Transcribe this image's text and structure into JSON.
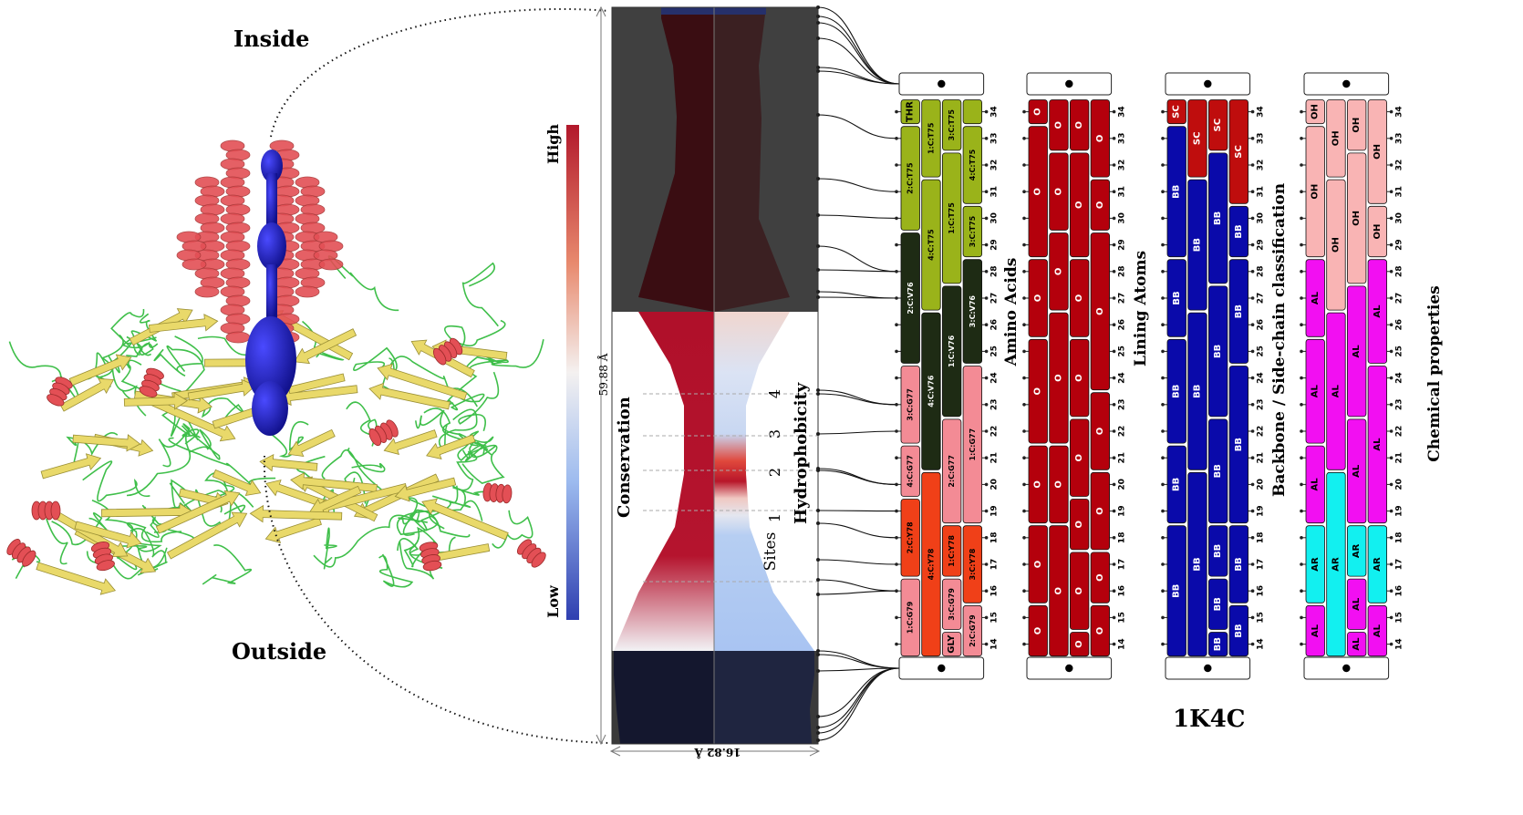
{
  "labels": {
    "inside": "Inside",
    "outside": "Outside",
    "high": "High",
    "low": "Low",
    "height_measure": "59.88 Å",
    "width_measure": "16.82 Å",
    "conservation": "Conservation",
    "hydrophobicity": "Hydrophobicity",
    "sites": "Sites",
    "pdb_id": "1K4C"
  },
  "sites": [
    "1",
    "2",
    "3",
    "4"
  ],
  "panel_titles": [
    "Amino Acids",
    "Lining Atoms",
    "Backbone / Side-chain classification",
    "Chemical properties"
  ],
  "residue_numbers": [
    "34",
    "33",
    "32",
    "31",
    "30",
    "29",
    "28",
    "27",
    "26",
    "25",
    "24",
    "23",
    "22",
    "21",
    "20",
    "19",
    "18",
    "17",
    "16",
    "15",
    "14"
  ],
  "amino_acid_segments": [
    {
      "col": 0,
      "from": 34,
      "to": 34,
      "text": "THR",
      "color": "#9ab31a"
    },
    {
      "col": 0,
      "from": 33,
      "to": 30,
      "text": "2:C:T75",
      "color": "#9ab31a"
    },
    {
      "col": 0,
      "from": 29,
      "to": 25,
      "text": "2:C:V76",
      "color": "#1e2b14"
    },
    {
      "col": 0,
      "from": 24,
      "to": 22,
      "text": "3:C:G77",
      "color": "#f38b95"
    },
    {
      "col": 0,
      "from": 21,
      "to": 20,
      "text": "4:C:G77",
      "color": "#f38b95"
    },
    {
      "col": 0,
      "from": 19,
      "to": 17,
      "text": "2:C:Y78",
      "color": "#f04018"
    },
    {
      "col": 0,
      "from": 16,
      "to": 14,
      "text": "1:C:G79",
      "color": "#f38b95"
    },
    {
      "col": 1,
      "from": 34,
      "to": 32,
      "text": "1:C:T75",
      "color": "#9ab31a"
    },
    {
      "col": 1,
      "from": 31,
      "to": 27,
      "text": "4:C:T75",
      "color": "#9ab31a"
    },
    {
      "col": 1,
      "from": 26,
      "to": 21,
      "text": "4:C:V76",
      "color": "#1e2b14"
    },
    {
      "col": 1,
      "from": 20,
      "to": 14,
      "text": "4:C:Y78",
      "color": "#f04018"
    },
    {
      "col": 2,
      "from": 34,
      "to": 33,
      "text": "3:C:T75",
      "color": "#9ab31a"
    },
    {
      "col": 2,
      "from": 32,
      "to": 28,
      "text": "1:C:T75",
      "color": "#9ab31a"
    },
    {
      "col": 2,
      "from": 27,
      "to": 23,
      "text": "1:C:V76",
      "color": "#1e2b14"
    },
    {
      "col": 2,
      "from": 22,
      "to": 19,
      "text": "2:C:G77",
      "color": "#f38b95"
    },
    {
      "col": 2,
      "from": 18,
      "to": 17,
      "text": "1:C:Y78",
      "color": "#f04018"
    },
    {
      "col": 2,
      "from": 16,
      "to": 15,
      "text": "3:C:G79",
      "color": "#f38b95"
    },
    {
      "col": 2,
      "from": 14,
      "to": 14,
      "text": "GLY",
      "color": "#f38b95"
    },
    {
      "col": 3,
      "from": 34,
      "to": 34,
      "text": "",
      "color": "#9ab31a"
    },
    {
      "col": 3,
      "from": 33,
      "to": 31,
      "text": "4:C:T75",
      "color": "#9ab31a"
    },
    {
      "col": 3,
      "from": 30,
      "to": 29,
      "text": "3:C:T75",
      "color": "#9ab31a"
    },
    {
      "col": 3,
      "from": 28,
      "to": 25,
      "text": "3:C:V76",
      "color": "#1e2b14"
    },
    {
      "col": 3,
      "from": 24,
      "to": 19,
      "text": "1:C:G77",
      "color": "#f38b95"
    },
    {
      "col": 3,
      "from": 18,
      "to": 16,
      "text": "3:C:Y78",
      "color": "#f04018"
    },
    {
      "col": 3,
      "from": 15,
      "to": 14,
      "text": "2:C:G79",
      "color": "#f38b95"
    }
  ],
  "lining_segments": [
    {
      "col": 0,
      "from": 34,
      "to": 34,
      "text": "O"
    },
    {
      "col": 0,
      "from": 33,
      "to": 29,
      "text": "O"
    },
    {
      "col": 0,
      "from": 28,
      "to": 26,
      "text": "O"
    },
    {
      "col": 0,
      "from": 25,
      "to": 22,
      "text": "O"
    },
    {
      "col": 0,
      "from": 21,
      "to": 19,
      "text": "O"
    },
    {
      "col": 0,
      "from": 18,
      "to": 16,
      "text": "O"
    },
    {
      "col": 0,
      "from": 15,
      "to": 14,
      "text": "O"
    },
    {
      "col": 1,
      "from": 34,
      "to": 33,
      "text": "O"
    },
    {
      "col": 1,
      "from": 32,
      "to": 30,
      "text": "O"
    },
    {
      "col": 1,
      "from": 29,
      "to": 27,
      "text": "O"
    },
    {
      "col": 1,
      "from": 26,
      "to": 22,
      "text": "O"
    },
    {
      "col": 1,
      "from": 21,
      "to": 19,
      "text": "O"
    },
    {
      "col": 1,
      "from": 18,
      "to": 14,
      "text": "O"
    },
    {
      "col": 2,
      "from": 34,
      "to": 33,
      "text": "O"
    },
    {
      "col": 2,
      "from": 32,
      "to": 29,
      "text": "O"
    },
    {
      "col": 2,
      "from": 28,
      "to": 26,
      "text": "O"
    },
    {
      "col": 2,
      "from": 25,
      "to": 23,
      "text": "O"
    },
    {
      "col": 2,
      "from": 22,
      "to": 20,
      "text": "O"
    },
    {
      "col": 2,
      "from": 19,
      "to": 18,
      "text": "O"
    },
    {
      "col": 2,
      "from": 17,
      "to": 15,
      "text": "O"
    },
    {
      "col": 2,
      "from": 14,
      "to": 14,
      "text": "O"
    },
    {
      "col": 3,
      "from": 34,
      "to": 32,
      "text": "O"
    },
    {
      "col": 3,
      "from": 31,
      "to": 30,
      "text": "O"
    },
    {
      "col": 3,
      "from": 29,
      "to": 24,
      "text": "O"
    },
    {
      "col": 3,
      "from": 23,
      "to": 21,
      "text": "O"
    },
    {
      "col": 3,
      "from": 20,
      "to": 18,
      "text": "O"
    },
    {
      "col": 3,
      "from": 17,
      "to": 16,
      "text": "O"
    },
    {
      "col": 3,
      "from": 15,
      "to": 14,
      "text": "O"
    }
  ],
  "backbone_segments": [
    {
      "col": 0,
      "from": 34,
      "to": 34,
      "text": "SC",
      "color": "#bf0d0d"
    },
    {
      "col": 0,
      "from": 33,
      "to": 29,
      "text": "BB",
      "color": "#0a0aaa"
    },
    {
      "col": 0,
      "from": 28,
      "to": 26,
      "text": "BB",
      "color": "#0a0aaa"
    },
    {
      "col": 0,
      "from": 25,
      "to": 22,
      "text": "BB",
      "color": "#0a0aaa"
    },
    {
      "col": 0,
      "from": 21,
      "to": 19,
      "text": "BB",
      "color": "#0a0aaa"
    },
    {
      "col": 0,
      "from": 18,
      "to": 14,
      "text": "BB",
      "color": "#0a0aaa"
    },
    {
      "col": 1,
      "from": 34,
      "to": 32,
      "text": "SC",
      "color": "#bf0d0d"
    },
    {
      "col": 1,
      "from": 31,
      "to": 27,
      "text": "BB",
      "color": "#0a0aaa"
    },
    {
      "col": 1,
      "from": 26,
      "to": 21,
      "text": "BB",
      "color": "#0a0aaa"
    },
    {
      "col": 1,
      "from": 20,
      "to": 14,
      "text": "BB",
      "color": "#0a0aaa"
    },
    {
      "col": 2,
      "from": 34,
      "to": 33,
      "text": "SC",
      "color": "#bf0d0d"
    },
    {
      "col": 2,
      "from": 32,
      "to": 28,
      "text": "BB",
      "color": "#0a0aaa"
    },
    {
      "col": 2,
      "from": 27,
      "to": 23,
      "text": "BB",
      "color": "#0a0aaa"
    },
    {
      "col": 2,
      "from": 22,
      "to": 19,
      "text": "BB",
      "color": "#0a0aaa"
    },
    {
      "col": 2,
      "from": 18,
      "to": 17,
      "text": "BB",
      "color": "#0a0aaa"
    },
    {
      "col": 2,
      "from": 16,
      "to": 15,
      "text": "BB",
      "color": "#0a0aaa"
    },
    {
      "col": 2,
      "from": 14,
      "to": 14,
      "text": "BB",
      "color": "#0a0aaa"
    },
    {
      "col": 3,
      "from": 34,
      "to": 31,
      "text": "SC",
      "color": "#bf0d0d"
    },
    {
      "col": 3,
      "from": 30,
      "to": 29,
      "text": "BB",
      "color": "#0a0aaa"
    },
    {
      "col": 3,
      "from": 28,
      "to": 25,
      "text": "BB",
      "color": "#0a0aaa"
    },
    {
      "col": 3,
      "from": 24,
      "to": 19,
      "text": "BB",
      "color": "#0a0aaa"
    },
    {
      "col": 3,
      "from": 18,
      "to": 16,
      "text": "BB",
      "color": "#0a0aaa"
    },
    {
      "col": 3,
      "from": 15,
      "to": 14,
      "text": "BB",
      "color": "#0a0aaa"
    }
  ],
  "chemical_segments": [
    {
      "col": 0,
      "from": 34,
      "to": 34,
      "text": "OH",
      "color": "#f9b4b4"
    },
    {
      "col": 0,
      "from": 33,
      "to": 29,
      "text": "OH",
      "color": "#f9b4b4"
    },
    {
      "col": 0,
      "from": 28,
      "to": 26,
      "text": "AL",
      "color": "#f20ff2"
    },
    {
      "col": 0,
      "from": 25,
      "to": 22,
      "text": "AL",
      "color": "#f20ff2"
    },
    {
      "col": 0,
      "from": 21,
      "to": 19,
      "text": "AL",
      "color": "#f20ff2"
    },
    {
      "col": 0,
      "from": 18,
      "to": 16,
      "text": "AR",
      "color": "#12f0f0"
    },
    {
      "col": 0,
      "from": 15,
      "to": 14,
      "text": "AL",
      "color": "#f20ff2"
    },
    {
      "col": 1,
      "from": 34,
      "to": 32,
      "text": "OH",
      "color": "#f9b4b4"
    },
    {
      "col": 1,
      "from": 31,
      "to": 27,
      "text": "OH",
      "color": "#f9b4b4"
    },
    {
      "col": 1,
      "from": 26,
      "to": 21,
      "text": "AL",
      "color": "#f20ff2"
    },
    {
      "col": 1,
      "from": 20,
      "to": 14,
      "text": "AR",
      "color": "#12f0f0"
    },
    {
      "col": 2,
      "from": 34,
      "to": 33,
      "text": "OH",
      "color": "#f9b4b4"
    },
    {
      "col": 2,
      "from": 32,
      "to": 28,
      "text": "OH",
      "color": "#f9b4b4"
    },
    {
      "col": 2,
      "from": 27,
      "to": 23,
      "text": "AL",
      "color": "#f20ff2"
    },
    {
      "col": 2,
      "from": 22,
      "to": 19,
      "text": "AL",
      "color": "#f20ff2"
    },
    {
      "col": 2,
      "from": 18,
      "to": 17,
      "text": "AR",
      "color": "#12f0f0"
    },
    {
      "col": 2,
      "from": 16,
      "to": 15,
      "text": "AL",
      "color": "#f20ff2"
    },
    {
      "col": 2,
      "from": 14,
      "to": 14,
      "text": "AL",
      "color": "#f20ff2"
    },
    {
      "col": 3,
      "from": 34,
      "to": 31,
      "text": "OH",
      "color": "#f9b4b4"
    },
    {
      "col": 3,
      "from": 30,
      "to": 29,
      "text": "OH",
      "color": "#f9b4b4"
    },
    {
      "col": 3,
      "from": 28,
      "to": 25,
      "text": "AL",
      "color": "#f20ff2"
    },
    {
      "col": 3,
      "from": 24,
      "to": 19,
      "text": "AL",
      "color": "#f20ff2"
    },
    {
      "col": 3,
      "from": 18,
      "to": 16,
      "text": "AR",
      "color": "#12f0f0"
    },
    {
      "col": 3,
      "from": 15,
      "to": 14,
      "text": "AL",
      "color": "#f20ff2"
    }
  ],
  "colors": {
    "helix": "#e34f55",
    "sheet": "#e9d96a",
    "loop": "#3fbf4a",
    "pore": "#1f1fc8",
    "gradient_high": "#b2182b",
    "gradient_mid": "#f7f7f7",
    "gradient_low": "#2f3fb0",
    "dark_region": "#3e3e3e",
    "lining_red": "#b4000c"
  }
}
